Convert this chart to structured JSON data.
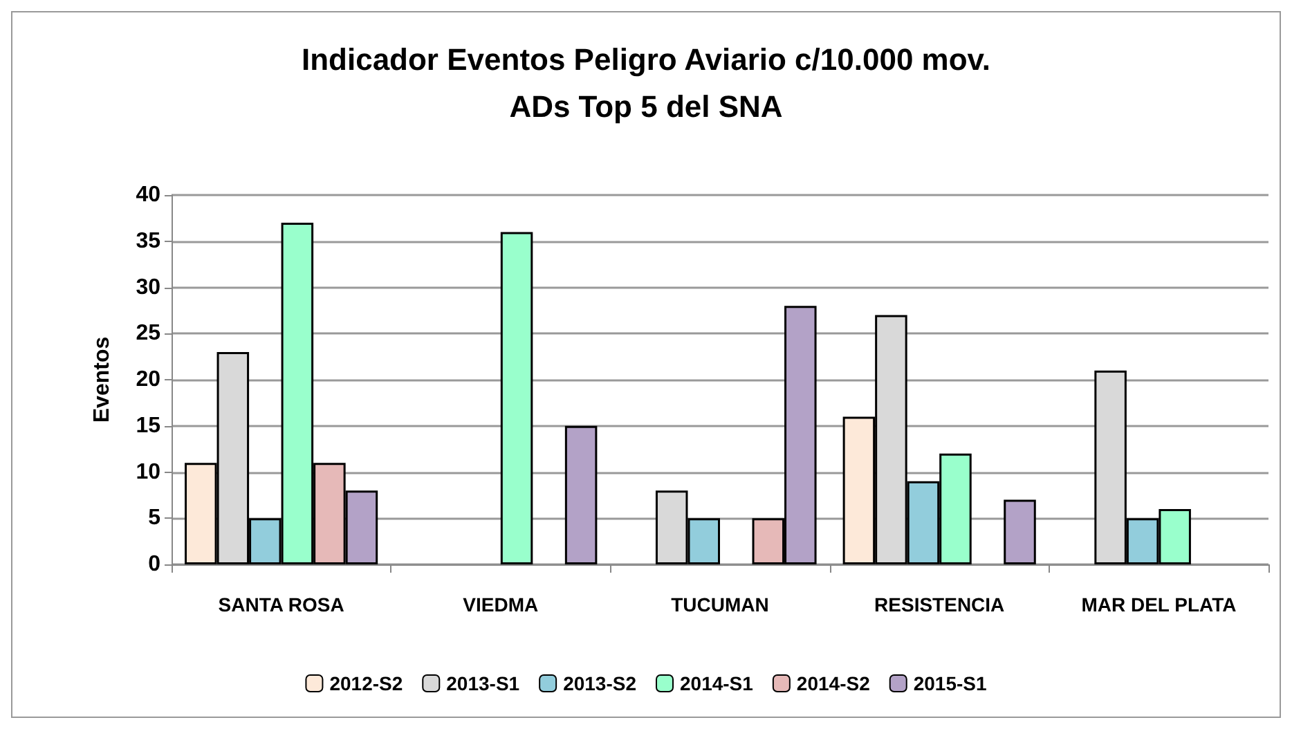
{
  "chart_data": {
    "type": "bar",
    "title": "Indicador Eventos Peligro Aviario c/10.000 mov.\nADs Top 5 del SNA",
    "ylabel": "Eventos",
    "categories": [
      "SANTA ROSA",
      "VIEDMA",
      "TUCUMAN",
      "RESISTENCIA",
      "MAR DEL PLATA"
    ],
    "series": [
      {
        "name": "2012-S2",
        "color": "#fde9d9",
        "values": [
          11,
          null,
          null,
          16,
          null
        ]
      },
      {
        "name": "2013-S1",
        "color": "#d9d9d9",
        "values": [
          23,
          null,
          8,
          27,
          21
        ]
      },
      {
        "name": "2013-S2",
        "color": "#92cddc",
        "values": [
          5,
          null,
          5,
          9,
          5
        ]
      },
      {
        "name": "2014-S1",
        "color": "#99ffcc",
        "values": [
          37,
          36,
          null,
          12,
          6
        ]
      },
      {
        "name": "2014-S2",
        "color": "#e6b9b8",
        "values": [
          11,
          null,
          5,
          null,
          null
        ]
      },
      {
        "name": "2015-S1",
        "color": "#b3a2c7",
        "values": [
          8,
          15,
          28,
          7,
          null
        ]
      }
    ],
    "ylim": [
      0,
      40
    ],
    "yticks": [
      0,
      5,
      10,
      15,
      20,
      25,
      30,
      35,
      40
    ],
    "grid": "y",
    "legend": "bottom"
  }
}
